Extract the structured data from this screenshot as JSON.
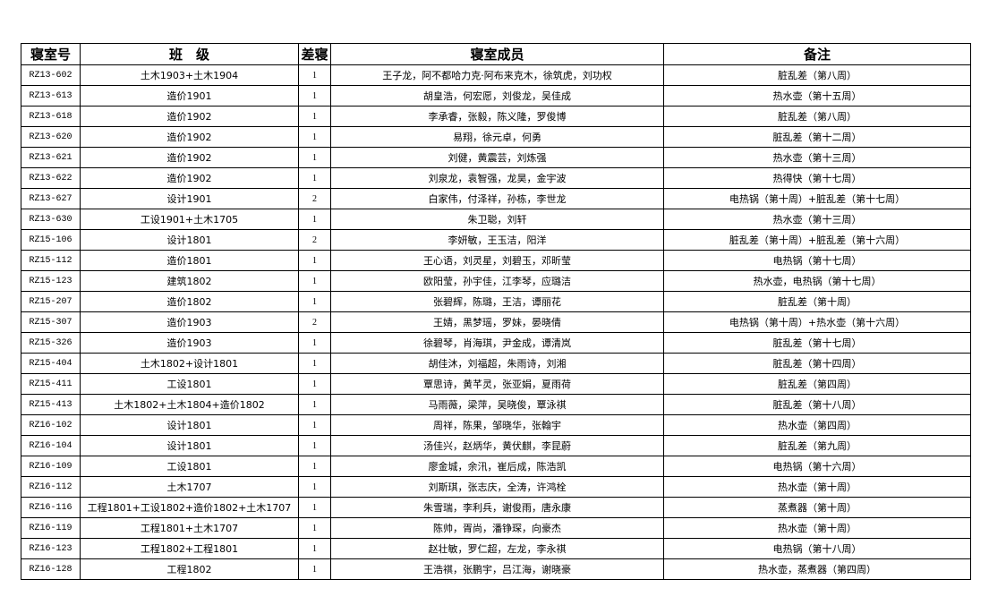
{
  "headers": [
    "寝室号",
    "班　级",
    "差寝",
    "寝室成员",
    "备注"
  ],
  "rows": [
    {
      "room": "RZ13-602",
      "class": "土木1903+土木1904",
      "count": "1",
      "members": "王子龙，阿不都哈力克·阿布来克木，徐筑虎，刘功权",
      "note": "脏乱差（第八周）"
    },
    {
      "room": "RZ13-613",
      "class": "造价1901",
      "count": "1",
      "members": "胡皇浩，何宏愿，刘俊龙，吴佳成",
      "note": "热水壶（第十五周）"
    },
    {
      "room": "RZ13-618",
      "class": "造价1902",
      "count": "1",
      "members": "李承睿，张毅，陈义隆，罗俊博",
      "note": "脏乱差（第八周）"
    },
    {
      "room": "RZ13-620",
      "class": "造价1902",
      "count": "1",
      "members": "易翔，徐元卓，何勇",
      "note": "脏乱差（第十二周）"
    },
    {
      "room": "RZ13-621",
      "class": "造价1902",
      "count": "1",
      "members": "刘健，黄震芸，刘炼强",
      "note": "热水壶（第十三周）"
    },
    {
      "room": "RZ13-622",
      "class": "造价1902",
      "count": "1",
      "members": "刘泉龙，袁智强，龙昊，金宇波",
      "note": "热得快（第十七周）"
    },
    {
      "room": "RZ13-627",
      "class": "设计1901",
      "count": "2",
      "members": "白家伟，付泽祥，孙栋，李世龙",
      "note": "电热锅（第十周）+脏乱差（第十七周）"
    },
    {
      "room": "RZ13-630",
      "class": "工设1901+土木1705",
      "count": "1",
      "members": "朱卫聪，刘轩",
      "note": "热水壶（第十三周）"
    },
    {
      "room": "RZ15-106",
      "class": "设计1801",
      "count": "2",
      "members": "李妍敏，王玉洁，阳洋",
      "note": "脏乱差（第十周）+脏乱差（第十六周）"
    },
    {
      "room": "RZ15-112",
      "class": "造价1801",
      "count": "1",
      "members": "王心语，刘灵星，刘碧玉，邓昕莹",
      "note": "电热锅（第十七周）"
    },
    {
      "room": "RZ15-123",
      "class": "建筑1802",
      "count": "1",
      "members": "欧阳莹，孙宇佳，江李琴，应璐洁",
      "note": "热水壶，电热锅（第十七周）"
    },
    {
      "room": "RZ15-207",
      "class": "造价1802",
      "count": "1",
      "members": "张碧辉，陈璐，王洁，谭丽花",
      "note": "脏乱差（第十周）"
    },
    {
      "room": "RZ15-307",
      "class": "造价1903",
      "count": "2",
      "members": "王婧，黑梦瑶，罗妹，晏晓倩",
      "note": "电热锅（第十周）+热水壶（第十六周）"
    },
    {
      "room": "RZ15-326",
      "class": "造价1903",
      "count": "1",
      "members": "徐碧琴，肖海琪，尹金成，谭清岚",
      "note": "脏乱差（第十七周）"
    },
    {
      "room": "RZ15-404",
      "class": "土木1802+设计1801",
      "count": "1",
      "members": "胡佳沐，刘福超，朱雨诗，刘湘",
      "note": "脏乱差（第十四周）"
    },
    {
      "room": "RZ15-411",
      "class": "工设1801",
      "count": "1",
      "members": "覃思诗，黄芊灵，张亚娟，夏雨荷",
      "note": "脏乱差（第四周）"
    },
    {
      "room": "RZ15-413",
      "class": "土木1802+土木1804+造价1802",
      "count": "1",
      "members": "马雨薇，梁萍，吴晓俊，覃泳祺",
      "note": "脏乱差（第十八周）"
    },
    {
      "room": "RZ16-102",
      "class": "设计1801",
      "count": "1",
      "members": "周祥，陈果，邹晓华，张翰宇",
      "note": "热水壶（第四周）"
    },
    {
      "room": "RZ16-104",
      "class": "设计1801",
      "count": "1",
      "members": "汤佳兴，赵炳华，黄伏麒，李昆蔚",
      "note": "脏乱差（第九周）"
    },
    {
      "room": "RZ16-109",
      "class": "工设1801",
      "count": "1",
      "members": "廖金城，余汛，崔后成，陈浩凯",
      "note": "电热锅（第十六周）"
    },
    {
      "room": "RZ16-112",
      "class": "土木1707",
      "count": "1",
      "members": "刘斯琪，张志庆，全涛，许鸿栓",
      "note": "热水壶（第十周）"
    },
    {
      "room": "RZ16-116",
      "class": "工程1801+工设1802+造价1802+土木1707",
      "count": "1",
      "members": "朱雪瑞，李利兵，谢俊雨，唐永康",
      "note": "蒸煮器（第十周）"
    },
    {
      "room": "RZ16-119",
      "class": "工程1801+土木1707",
      "count": "1",
      "members": "陈帅，胥尚，潘铮琛，向豪杰",
      "note": "热水壶（第十周）"
    },
    {
      "room": "RZ16-123",
      "class": "工程1802+工程1801",
      "count": "1",
      "members": "赵壮敏，罗仁超，左龙，李永祺",
      "note": "电热锅（第十八周）"
    },
    {
      "room": "RZ16-128",
      "class": "工程1802",
      "count": "1",
      "members": "王浩祺，张鹏宇，吕江海，谢晓豪",
      "note": "热水壶，蒸煮器（第四周）"
    }
  ]
}
